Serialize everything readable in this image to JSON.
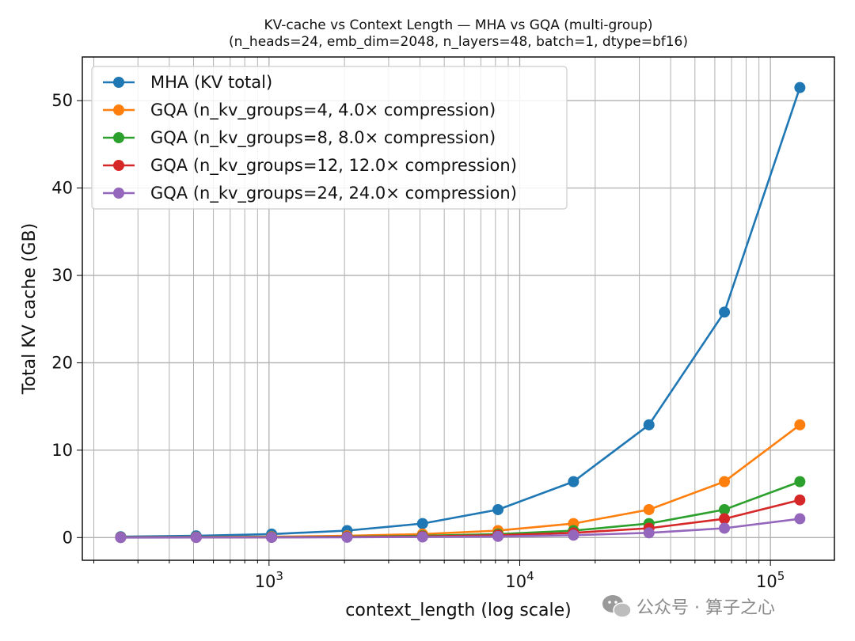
{
  "chart_data": {
    "type": "line",
    "title": "KV-cache vs Context Length — MHA vs GQA (multi-group)",
    "subtitle": "(n_heads=24, emb_dim=2048, n_layers=48, batch=1, dtype=bf16)",
    "xlabel": "context_length (log scale)",
    "ylabel": "Total KV cache (GB)",
    "xscale": "log",
    "xlim": [
      180,
      180000
    ],
    "ylim": [
      -2.6,
      55
    ],
    "x_ticks": [
      {
        "value": 1000,
        "label": "10^3"
      },
      {
        "value": 10000,
        "label": "10^4"
      },
      {
        "value": 100000,
        "label": "10^5"
      }
    ],
    "y_ticks": [
      0,
      10,
      20,
      30,
      40,
      50
    ],
    "grid": true,
    "legend_position": "top-left",
    "x": [
      256,
      512,
      1024,
      2048,
      4096,
      8192,
      16384,
      32768,
      65536,
      131072
    ],
    "series": [
      {
        "name": "MHA (KV total)",
        "color": "#1f77b4",
        "values": [
          0.1,
          0.2,
          0.4,
          0.8,
          1.6,
          3.2,
          6.4,
          12.9,
          25.8,
          51.5
        ]
      },
      {
        "name": "GQA (n_kv_groups=4, 4.0× compression)",
        "color": "#ff7f0e",
        "values": [
          0.03,
          0.05,
          0.1,
          0.2,
          0.4,
          0.8,
          1.6,
          3.2,
          6.4,
          12.9
        ]
      },
      {
        "name": "GQA (n_kv_groups=8, 8.0× compression)",
        "color": "#2ca02c",
        "values": [
          0.01,
          0.03,
          0.05,
          0.1,
          0.2,
          0.4,
          0.8,
          1.6,
          3.2,
          6.4
        ]
      },
      {
        "name": "GQA (n_kv_groups=12, 12.0× compression)",
        "color": "#d62728",
        "values": [
          0.01,
          0.02,
          0.03,
          0.07,
          0.13,
          0.27,
          0.54,
          1.07,
          2.15,
          4.3
        ]
      },
      {
        "name": "GQA (n_kv_groups=24, 24.0× compression)",
        "color": "#9467bd",
        "values": [
          0.0,
          0.01,
          0.02,
          0.03,
          0.07,
          0.13,
          0.27,
          0.54,
          1.07,
          2.15
        ]
      }
    ]
  },
  "watermark": {
    "text": "公众号 · 算子之心",
    "icon": "wechat-icon"
  }
}
